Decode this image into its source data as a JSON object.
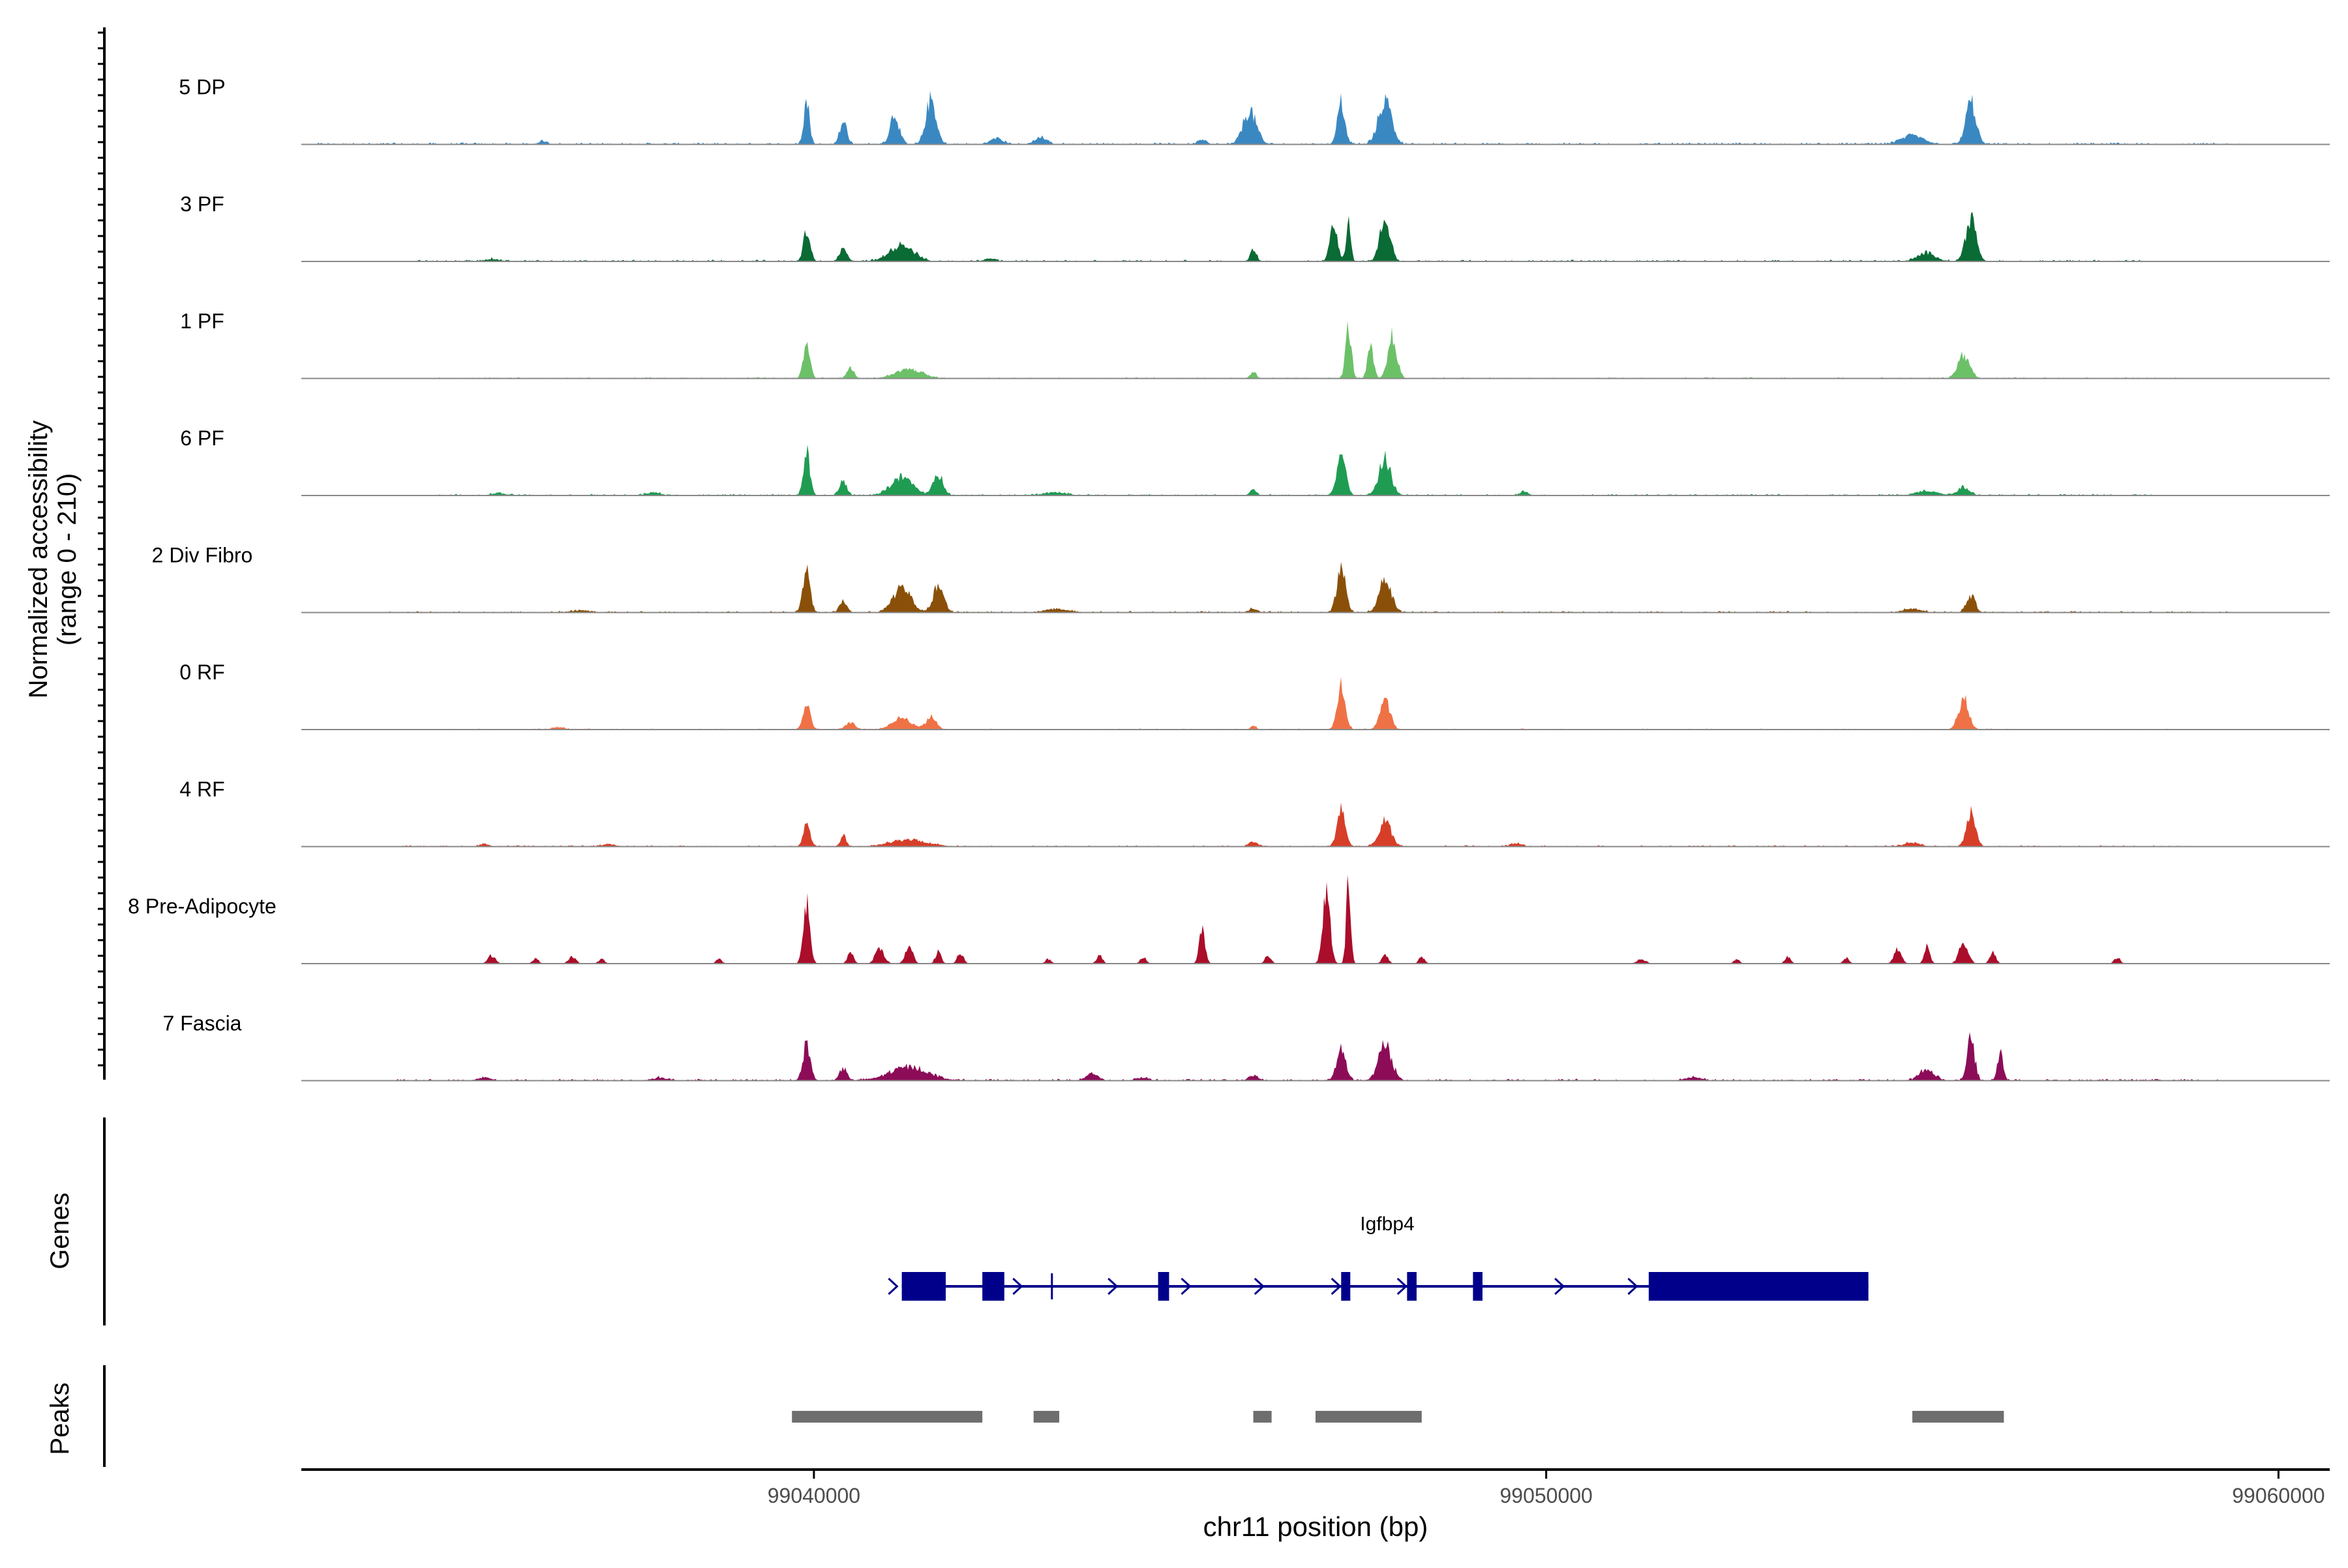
{
  "chart_data": {
    "type": "coverage-track",
    "x_axis": {
      "label": "chr11 position (bp)",
      "range": [
        99033000,
        99060700
      ],
      "ticks": [
        99040000,
        99050000,
        99060000
      ],
      "tick_labels": [
        "99040000",
        "99050000",
        "99060000"
      ]
    },
    "y_axis": {
      "label_line1": "Normalized accessibility",
      "label_line2": "(range 0 - 210)",
      "range": [
        0,
        210
      ]
    },
    "tracks": [
      {
        "name": "5 DP",
        "color": "#3A88C2",
        "peaks": [
          [
            99036300,
            0.05,
            60
          ],
          [
            99039900,
            0.78,
            40
          ],
          [
            99040400,
            0.4,
            50
          ],
          [
            99041100,
            0.55,
            60
          ],
          [
            99041600,
            0.8,
            70
          ],
          [
            99042500,
            0.12,
            80
          ],
          [
            99043100,
            0.12,
            80
          ],
          [
            99045300,
            0.08,
            60
          ],
          [
            99045950,
            0.6,
            90
          ],
          [
            99047200,
            0.75,
            50
          ],
          [
            99047800,
            0.78,
            90
          ],
          [
            99055000,
            0.15,
            150
          ],
          [
            99055800,
            0.75,
            70
          ]
        ],
        "noise": 0.035,
        "span": [
          99033200,
          99059500
        ]
      },
      {
        "name": "3 PF",
        "color": "#0A6B35",
        "peaks": [
          [
            99035600,
            0.04,
            100
          ],
          [
            99039900,
            0.55,
            45
          ],
          [
            99040400,
            0.22,
            50
          ],
          [
            99041200,
            0.3,
            160
          ],
          [
            99042400,
            0.05,
            80
          ],
          [
            99046000,
            0.22,
            40
          ],
          [
            99047100,
            0.68,
            50
          ],
          [
            99047300,
            0.85,
            30
          ],
          [
            99047800,
            0.75,
            70
          ],
          [
            99055200,
            0.15,
            120
          ],
          [
            99055800,
            0.78,
            70
          ]
        ],
        "noise": 0.03,
        "span": [
          99034500,
          99058400
        ]
      },
      {
        "name": "1 PF",
        "color": "#6CC168",
        "peaks": [
          [
            99039900,
            0.65,
            45
          ],
          [
            99040500,
            0.18,
            50
          ],
          [
            99041300,
            0.16,
            180
          ],
          [
            99046000,
            0.12,
            40
          ],
          [
            99047300,
            0.9,
            40
          ],
          [
            99047600,
            0.55,
            40
          ],
          [
            99047900,
            0.75,
            60
          ],
          [
            99055700,
            0.42,
            80
          ]
        ],
        "noise": 0.022,
        "span": [
          99034800,
          99058700
        ]
      },
      {
        "name": "6 PF",
        "color": "#1F9C52",
        "peaks": [
          [
            99035700,
            0.04,
            100
          ],
          [
            99037800,
            0.05,
            100
          ],
          [
            99039900,
            0.75,
            45
          ],
          [
            99040400,
            0.25,
            50
          ],
          [
            99041200,
            0.32,
            150
          ],
          [
            99041700,
            0.35,
            70
          ],
          [
            99043300,
            0.05,
            150
          ],
          [
            99046000,
            0.12,
            40
          ],
          [
            99047200,
            0.75,
            60
          ],
          [
            99047800,
            0.65,
            80
          ],
          [
            99049700,
            0.08,
            50
          ],
          [
            99055200,
            0.08,
            150
          ],
          [
            99055700,
            0.15,
            80
          ]
        ],
        "noise": 0.028,
        "span": [
          99034800,
          99058300
        ]
      },
      {
        "name": "2 Div Fibro",
        "color": "#8A5009",
        "peaks": [
          [
            99036800,
            0.03,
            150
          ],
          [
            99039900,
            0.7,
            50
          ],
          [
            99040400,
            0.2,
            50
          ],
          [
            99041200,
            0.45,
            120
          ],
          [
            99041700,
            0.48,
            70
          ],
          [
            99043300,
            0.06,
            150
          ],
          [
            99046000,
            0.06,
            60
          ],
          [
            99047200,
            0.75,
            60
          ],
          [
            99047800,
            0.62,
            80
          ],
          [
            99055000,
            0.06,
            120
          ],
          [
            99055800,
            0.3,
            60
          ]
        ],
        "noise": 0.028,
        "span": [
          99034200,
          99059300
        ]
      },
      {
        "name": "0 RF",
        "color": "#EF7246",
        "peaks": [
          [
            99036500,
            0.03,
            100
          ],
          [
            99039900,
            0.5,
            50
          ],
          [
            99040500,
            0.12,
            60
          ],
          [
            99041200,
            0.2,
            130
          ],
          [
            99041600,
            0.22,
            70
          ],
          [
            99046000,
            0.06,
            40
          ],
          [
            99047200,
            0.8,
            55
          ],
          [
            99047800,
            0.5,
            70
          ],
          [
            99055700,
            0.55,
            70
          ]
        ],
        "noise": 0.018,
        "span": [
          99035000,
          99058500
        ]
      },
      {
        "name": "4 RF",
        "color": "#D73E28",
        "peaks": [
          [
            99035500,
            0.05,
            60
          ],
          [
            99037200,
            0.04,
            100
          ],
          [
            99039900,
            0.45,
            45
          ],
          [
            99040400,
            0.2,
            40
          ],
          [
            99041300,
            0.12,
            250
          ],
          [
            99046000,
            0.08,
            60
          ],
          [
            99047200,
            0.7,
            55
          ],
          [
            99047800,
            0.45,
            80
          ],
          [
            99049600,
            0.05,
            80
          ],
          [
            99055000,
            0.06,
            120
          ],
          [
            99055800,
            0.6,
            60
          ]
        ],
        "noise": 0.024,
        "span": [
          99034300,
          99058800
        ]
      },
      {
        "name": "8 Pre-Adipocyte",
        "color": "#AA0E2B",
        "peaks": [
          [
            99035600,
            0.15,
            50
          ],
          [
            99036200,
            0.1,
            40
          ],
          [
            99036700,
            0.12,
            50
          ],
          [
            99037100,
            0.08,
            40
          ],
          [
            99038700,
            0.08,
            40
          ],
          [
            99039900,
            1.1,
            45
          ],
          [
            99040500,
            0.2,
            40
          ],
          [
            99040900,
            0.28,
            60
          ],
          [
            99041300,
            0.32,
            50
          ],
          [
            99041700,
            0.22,
            40
          ],
          [
            99042000,
            0.2,
            40
          ],
          [
            99043200,
            0.08,
            40
          ],
          [
            99043900,
            0.15,
            40
          ],
          [
            99044500,
            0.12,
            40
          ],
          [
            99045300,
            0.6,
            40
          ],
          [
            99046200,
            0.15,
            40
          ],
          [
            99047000,
            1.3,
            50
          ],
          [
            99047300,
            1.5,
            30
          ],
          [
            99047800,
            0.18,
            40
          ],
          [
            99048300,
            0.12,
            40
          ],
          [
            99051300,
            0.08,
            60
          ],
          [
            99052600,
            0.08,
            40
          ],
          [
            99053300,
            0.12,
            40
          ],
          [
            99054100,
            0.1,
            40
          ],
          [
            99054800,
            0.25,
            50
          ],
          [
            99055200,
            0.3,
            40
          ],
          [
            99055700,
            0.4,
            60
          ],
          [
            99056100,
            0.2,
            40
          ],
          [
            99057800,
            0.12,
            40
          ]
        ],
        "noise": 0.0,
        "span": [
          99035300,
          99058400
        ]
      },
      {
        "name": "7 Fascia",
        "color": "#8C0C58",
        "peaks": [
          [
            99035500,
            0.05,
            80
          ],
          [
            99037900,
            0.05,
            100
          ],
          [
            99039900,
            0.65,
            50
          ],
          [
            99040400,
            0.22,
            50
          ],
          [
            99041300,
            0.24,
            260
          ],
          [
            99043800,
            0.12,
            80
          ],
          [
            99044500,
            0.05,
            80
          ],
          [
            99046000,
            0.1,
            60
          ],
          [
            99047200,
            0.58,
            60
          ],
          [
            99047800,
            0.63,
            90
          ],
          [
            99052000,
            0.05,
            120
          ],
          [
            99055200,
            0.2,
            100
          ],
          [
            99055800,
            0.74,
            50
          ],
          [
            99056200,
            0.5,
            40
          ]
        ],
        "noise": 0.032,
        "span": [
          99034300,
          99059200
        ]
      }
    ],
    "genes_panel": {
      "label": "Genes",
      "gene_name": "Igfbp4",
      "strand": "+",
      "color": "#00008B",
      "span": [
        99041200,
        99054400
      ],
      "exons": [
        [
          99041200,
          99041800
        ],
        [
          99042300,
          99042600
        ],
        [
          99044700,
          99044850
        ],
        [
          99047200,
          99047300
        ],
        [
          99048100,
          99048230
        ],
        [
          99049000,
          99049130
        ],
        [
          99051400,
          99054400
        ]
      ]
    },
    "peaks_panel": {
      "label": "Peaks",
      "color": "#6E6E6E",
      "regions": [
        [
          99039700,
          99042300
        ],
        [
          99043000,
          99043350
        ],
        [
          99046000,
          99046250
        ],
        [
          99046850,
          99048300
        ],
        [
          99055000,
          99056250
        ]
      ]
    }
  }
}
